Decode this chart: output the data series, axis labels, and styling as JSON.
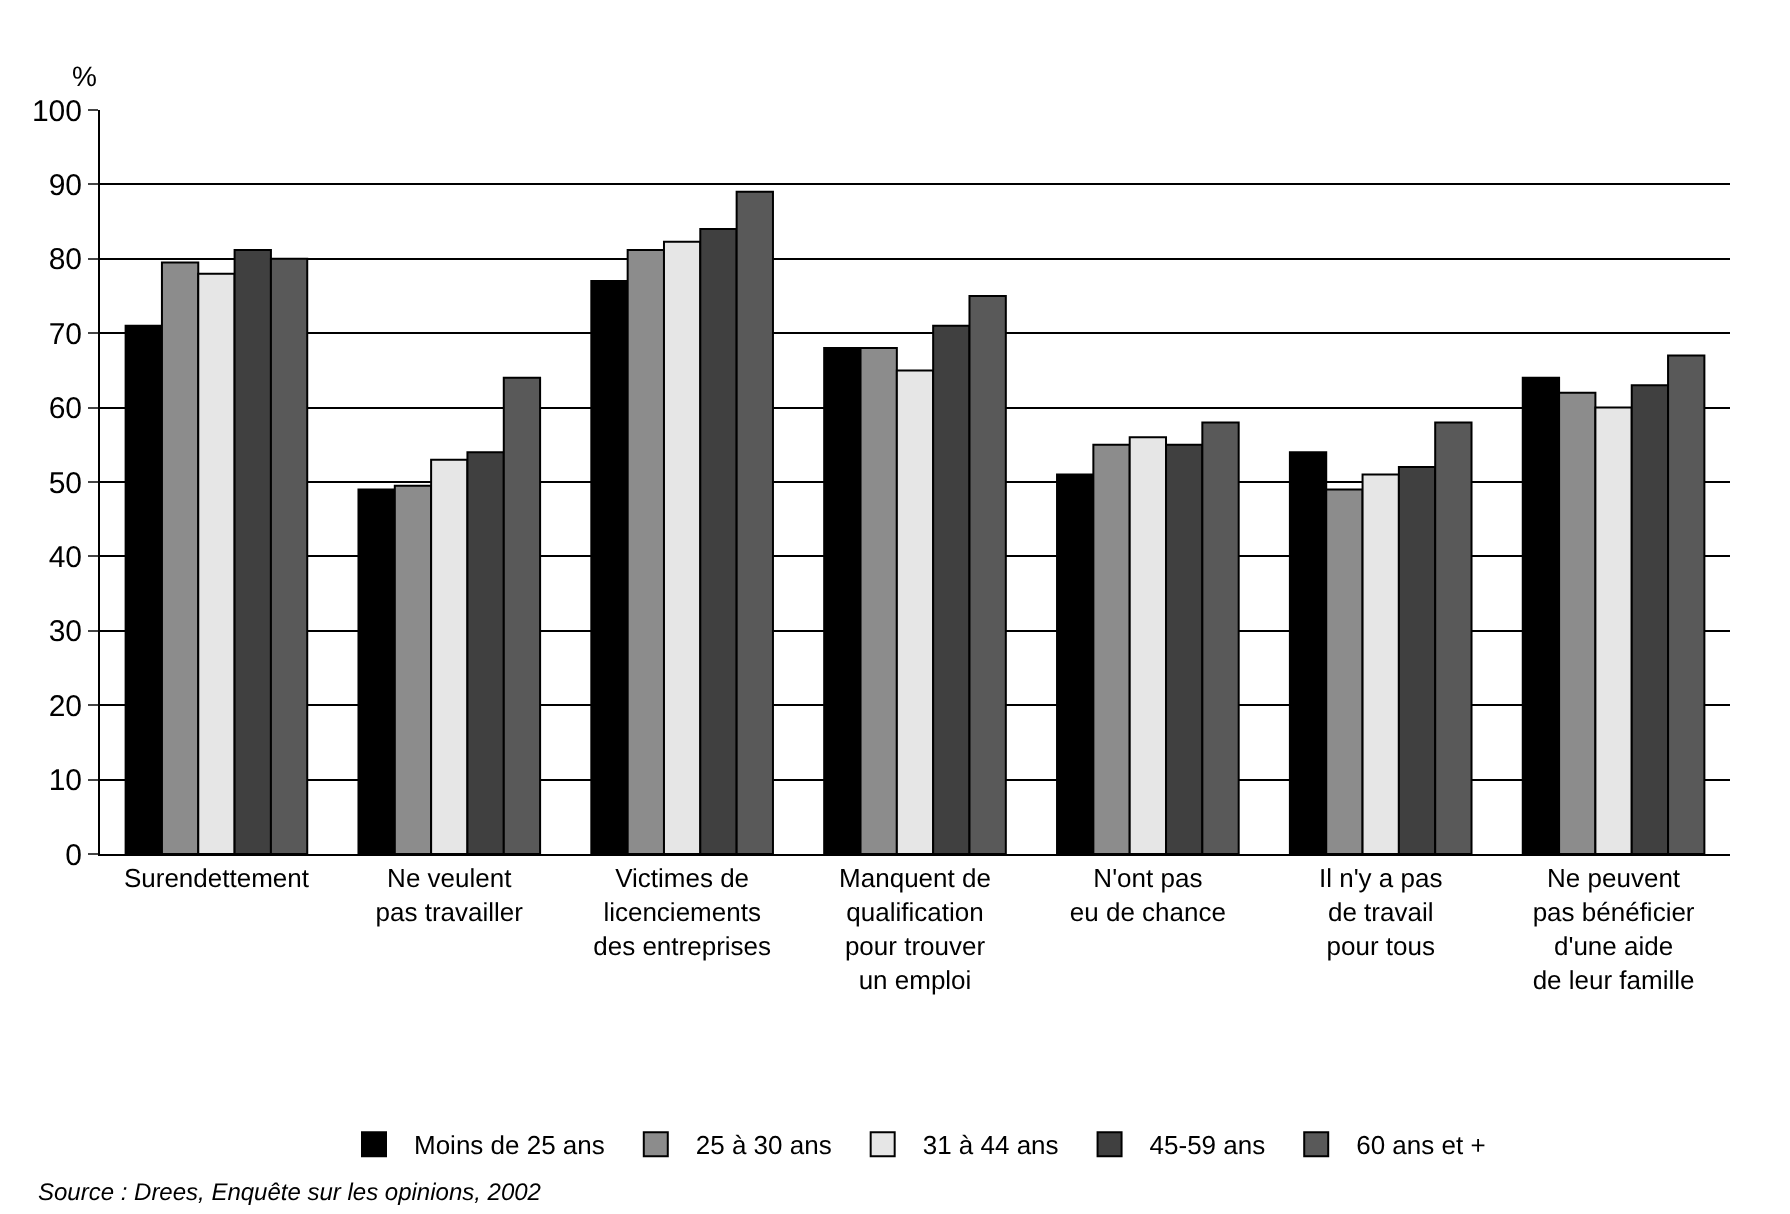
{
  "chart_data": {
    "type": "bar",
    "ylabel": "%",
    "categories": [
      "Surendettement",
      "Ne veulent\npas travailler",
      "Victimes de\nlicenciements\ndes entreprises",
      "Manquent de\nqualification\npour trouver\nun emploi",
      "N'ont pas\neu de chance",
      "Il n'y a pas\nde travail\npour tous",
      "Ne peuvent\npas bénéficier\nd'une aide\nde leur famille"
    ],
    "series": [
      {
        "name": "Moins de 25 ans",
        "color": "#000000",
        "values": [
          71,
          49,
          77,
          68,
          51,
          54,
          64
        ]
      },
      {
        "name": "25 à 30 ans",
        "color": "#8c8c8c",
        "values": [
          79.5,
          49.5,
          81.2,
          68,
          55,
          49,
          62
        ]
      },
      {
        "name": "31 à 44 ans",
        "color": "#e6e6e6",
        "values": [
          78,
          53,
          82.3,
          65,
          56,
          51,
          60
        ]
      },
      {
        "name": "45-59 ans",
        "color": "#404040",
        "values": [
          81.2,
          54,
          84,
          71,
          55,
          52,
          63
        ]
      },
      {
        "name": "60 ans et +",
        "color": "#595959",
        "values": [
          80,
          64,
          89,
          75,
          58,
          58,
          67
        ]
      }
    ],
    "ylim": [
      0,
      100
    ],
    "yticks": [
      0,
      10,
      20,
      30,
      40,
      50,
      60,
      70,
      80,
      90,
      100
    ],
    "grid": "y",
    "legend": "bottom",
    "annotations": [
      "Source : Drees, Enquête sur les opinions, 2002"
    ]
  }
}
